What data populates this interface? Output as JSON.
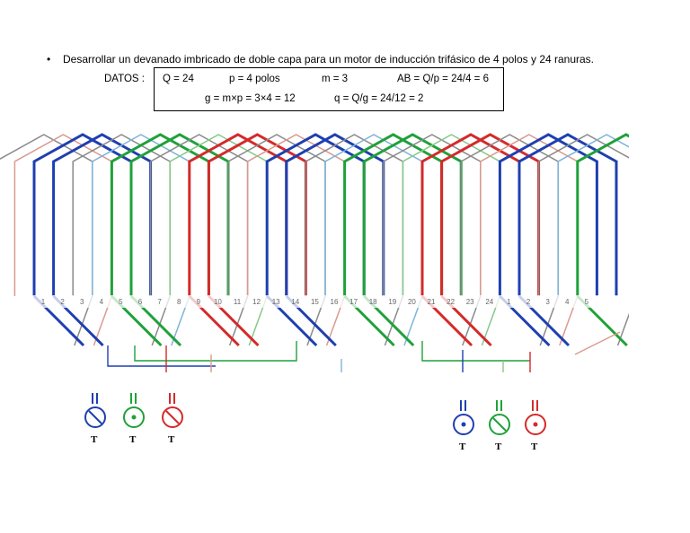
{
  "problem": {
    "bullet": "•",
    "statement": "Desarrollar un devanado imbricado de doble capa para un motor de inducción trifásico de 4 polos y 24 ranuras."
  },
  "datos": {
    "label": "DATOS :",
    "q_total": "Q = 24",
    "poles": "p = 4 polos",
    "phases": "m = 3",
    "ab": "AB = Q/p = 24/4 = 6",
    "g": "g = m×p = 3×4 = 12",
    "q_group": "q = Q/g = 24/12 = 2"
  },
  "slots": {
    "labels": [
      "1",
      "2",
      "3",
      "4",
      "5",
      "6",
      "7",
      "8",
      "9",
      "10",
      "11",
      "12",
      "13",
      "14",
      "15",
      "16",
      "17",
      "18",
      "19",
      "20",
      "21",
      "22",
      "23",
      "24",
      "1",
      "2",
      "3",
      "4",
      "5"
    ]
  },
  "phase_colors": {
    "blue": "#1f3fb0",
    "green": "#1fa13a",
    "red": "#d42a2a",
    "lightblue": "#7fb3d8",
    "lightgreen": "#86c98a",
    "lightred": "#d99a8e",
    "gray": "#8a8a8a"
  },
  "terminals_left": [
    {
      "symbol": "start",
      "color": "#1f3fb0",
      "label": "T"
    },
    {
      "symbol": "end",
      "color": "#1fa13a",
      "label": "T"
    },
    {
      "symbol": "start",
      "color": "#d42a2a",
      "label": "T"
    }
  ],
  "terminals_right": [
    {
      "symbol": "end",
      "color": "#1f3fb0",
      "label": "T"
    },
    {
      "symbol": "start",
      "color": "#1fa13a",
      "label": "T"
    },
    {
      "symbol": "end",
      "color": "#d42a2a",
      "label": "T"
    }
  ]
}
